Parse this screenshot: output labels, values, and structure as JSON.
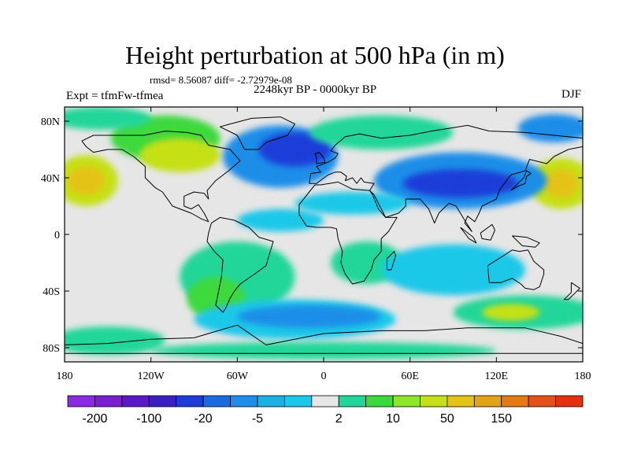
{
  "title": "Height perturbation at 500 hPa (in m)",
  "stats": "rmsd= 8.56087 diff= -2.72979e-08",
  "period": "2248kyr BP - 0000kyr BP",
  "experiment": "Expt = tfmFw-tfmea",
  "season": "DJF",
  "map": {
    "projection": "cylindrical equidistant",
    "lon_range": [
      -180,
      180
    ],
    "lat_range": [
      -90,
      90
    ],
    "lon_ticks": [
      {
        "value": -180,
        "label": "180"
      },
      {
        "value": -120,
        "label": "120W"
      },
      {
        "value": -60,
        "label": "60W"
      },
      {
        "value": 0,
        "label": "0"
      },
      {
        "value": 60,
        "label": "60E"
      },
      {
        "value": 120,
        "label": "120E"
      },
      {
        "value": 180,
        "label": "180"
      }
    ],
    "lat_ticks": [
      {
        "value": 80,
        "label": "80N"
      },
      {
        "value": 40,
        "label": "40N"
      },
      {
        "value": 0,
        "label": "0"
      },
      {
        "value": -40,
        "label": "40S"
      },
      {
        "value": -80,
        "label": "80S"
      }
    ],
    "background_color": "#e6e6e6",
    "coastline_color": "#000000",
    "anomaly_regions": [
      {
        "lon": -165,
        "lat": 38,
        "rlon": 22,
        "rlat": 18,
        "level": 40
      },
      {
        "lon": -165,
        "lat": 38,
        "rlon": 13,
        "rlat": 10,
        "level": 50
      },
      {
        "lon": 165,
        "lat": 36,
        "rlon": 22,
        "rlat": 18,
        "level": 40
      },
      {
        "lon": 165,
        "lat": 36,
        "rlon": 12,
        "rlat": 10,
        "level": 50
      },
      {
        "lon": -110,
        "lat": 68,
        "rlon": 38,
        "rlat": 16,
        "level": 20
      },
      {
        "lon": -100,
        "lat": 56,
        "rlon": 28,
        "rlat": 12,
        "level": 40
      },
      {
        "lon": -155,
        "lat": 82,
        "rlon": 35,
        "rlat": 8,
        "level": 10
      },
      {
        "lon": -30,
        "lat": 55,
        "rlon": 40,
        "rlat": 22,
        "level": -20
      },
      {
        "lon": -20,
        "lat": 60,
        "rlon": 25,
        "rlat": 12,
        "level": -50
      },
      {
        "lon": 95,
        "lat": 38,
        "rlon": 60,
        "rlat": 20,
        "level": -20
      },
      {
        "lon": 95,
        "lat": 36,
        "rlon": 40,
        "rlat": 10,
        "level": -50
      },
      {
        "lon": 40,
        "lat": 72,
        "rlon": 50,
        "rlat": 12,
        "level": 10
      },
      {
        "lon": 20,
        "lat": 22,
        "rlon": 40,
        "rlat": 8,
        "level": -5
      },
      {
        "lon": -30,
        "lat": 10,
        "rlon": 30,
        "rlat": 8,
        "level": -5
      },
      {
        "lon": -60,
        "lat": -30,
        "rlon": 40,
        "rlat": 25,
        "level": 10
      },
      {
        "lon": -75,
        "lat": -45,
        "rlon": 20,
        "rlat": 15,
        "level": 20
      },
      {
        "lon": 30,
        "lat": -20,
        "rlon": 25,
        "rlat": 15,
        "level": 10
      },
      {
        "lon": -20,
        "lat": -60,
        "rlon": 70,
        "rlat": 14,
        "level": -5
      },
      {
        "lon": -10,
        "lat": -58,
        "rlon": 50,
        "rlat": 8,
        "level": -20
      },
      {
        "lon": 90,
        "lat": -25,
        "rlon": 50,
        "rlat": 18,
        "level": -5
      },
      {
        "lon": 140,
        "lat": -55,
        "rlon": 50,
        "rlat": 12,
        "level": 10
      },
      {
        "lon": 130,
        "lat": -55,
        "rlon": 20,
        "rlat": 6,
        "level": 40
      },
      {
        "lon": -150,
        "lat": -75,
        "rlon": 40,
        "rlat": 10,
        "level": 10
      },
      {
        "lon": 0,
        "lat": -82,
        "rlon": 120,
        "rlat": 6,
        "level": 10
      },
      {
        "lon": 160,
        "lat": 75,
        "rlon": 25,
        "rlat": 10,
        "level": -20
      }
    ],
    "coastlines": [
      {
        "name": "north-america",
        "points": [
          [
            -168,
            66
          ],
          [
            -160,
            70
          ],
          [
            -140,
            70
          ],
          [
            -125,
            70
          ],
          [
            -110,
            73
          ],
          [
            -95,
            72
          ],
          [
            -85,
            70
          ],
          [
            -80,
            63
          ],
          [
            -65,
            60
          ],
          [
            -58,
            52
          ],
          [
            -66,
            45
          ],
          [
            -75,
            38
          ],
          [
            -81,
            31
          ],
          [
            -80,
            25
          ],
          [
            -83,
            29
          ],
          [
            -90,
            30
          ],
          [
            -97,
            27
          ],
          [
            -97,
            20
          ],
          [
            -92,
            18
          ],
          [
            -87,
            21
          ],
          [
            -83,
            15
          ],
          [
            -80,
            9
          ],
          [
            -85,
            11
          ],
          [
            -92,
            15
          ],
          [
            -105,
            20
          ],
          [
            -112,
            30
          ],
          [
            -117,
            33
          ],
          [
            -124,
            40
          ],
          [
            -124,
            48
          ],
          [
            -132,
            55
          ],
          [
            -140,
            60
          ],
          [
            -150,
            60
          ],
          [
            -160,
            58
          ],
          [
            -165,
            62
          ],
          [
            -168,
            66
          ]
        ]
      },
      {
        "name": "greenland",
        "points": [
          [
            -55,
            60
          ],
          [
            -45,
            60
          ],
          [
            -40,
            65
          ],
          [
            -25,
            70
          ],
          [
            -20,
            78
          ],
          [
            -30,
            83
          ],
          [
            -50,
            82
          ],
          [
            -65,
            78
          ],
          [
            -72,
            76
          ],
          [
            -60,
            70
          ],
          [
            -55,
            60
          ]
        ]
      },
      {
        "name": "south-america",
        "points": [
          [
            -78,
            8
          ],
          [
            -72,
            12
          ],
          [
            -62,
            10
          ],
          [
            -52,
            5
          ],
          [
            -45,
            -2
          ],
          [
            -35,
            -5
          ],
          [
            -38,
            -15
          ],
          [
            -40,
            -22
          ],
          [
            -48,
            -28
          ],
          [
            -58,
            -35
          ],
          [
            -62,
            -40
          ],
          [
            -65,
            -45
          ],
          [
            -68,
            -52
          ],
          [
            -70,
            -55
          ],
          [
            -75,
            -50
          ],
          [
            -73,
            -40
          ],
          [
            -71,
            -30
          ],
          [
            -70,
            -18
          ],
          [
            -76,
            -12
          ],
          [
            -81,
            -5
          ],
          [
            -80,
            1
          ],
          [
            -78,
            8
          ]
        ]
      },
      {
        "name": "eurasia",
        "points": [
          [
            -10,
            36
          ],
          [
            -9,
            43
          ],
          [
            -2,
            44
          ],
          [
            -5,
            48
          ],
          [
            3,
            51
          ],
          [
            8,
            54
          ],
          [
            10,
            57
          ],
          [
            5,
            59
          ],
          [
            8,
            63
          ],
          [
            15,
            69
          ],
          [
            25,
            71
          ],
          [
            40,
            68
          ],
          [
            60,
            70
          ],
          [
            75,
            73
          ],
          [
            100,
            77
          ],
          [
            115,
            73
          ],
          [
            140,
            72
          ],
          [
            160,
            70
          ],
          [
            180,
            68
          ],
          [
            180,
            62
          ],
          [
            170,
            60
          ],
          [
            160,
            55
          ],
          [
            155,
            50
          ],
          [
            143,
            53
          ],
          [
            140,
            45
          ],
          [
            130,
            42
          ],
          [
            127,
            38
          ],
          [
            122,
            31
          ],
          [
            120,
            25
          ],
          [
            110,
            20
          ],
          [
            108,
            15
          ],
          [
            105,
            9
          ],
          [
            100,
            13
          ],
          [
            98,
            8
          ],
          [
            103,
            2
          ],
          [
            98,
            10
          ],
          [
            92,
            20
          ],
          [
            87,
            22
          ],
          [
            80,
            15
          ],
          [
            77,
            8
          ],
          [
            73,
            18
          ],
          [
            67,
            25
          ],
          [
            57,
            25
          ],
          [
            57,
            20
          ],
          [
            52,
            15
          ],
          [
            43,
            12
          ],
          [
            35,
            28
          ],
          [
            32,
            31
          ],
          [
            35,
            36
          ],
          [
            28,
            37
          ],
          [
            26,
            40
          ],
          [
            23,
            36
          ],
          [
            20,
            40
          ],
          [
            15,
            38
          ],
          [
            16,
            41
          ],
          [
            12,
            44
          ],
          [
            8,
            44
          ],
          [
            3,
            42
          ],
          [
            -5,
            36
          ],
          [
            -10,
            36
          ]
        ]
      },
      {
        "name": "africa",
        "points": [
          [
            -17,
            21
          ],
          [
            -17,
            14
          ],
          [
            -12,
            6
          ],
          [
            -5,
            5
          ],
          [
            5,
            5
          ],
          [
            9,
            4
          ],
          [
            10,
            -3
          ],
          [
            13,
            -12
          ],
          [
            12,
            -20
          ],
          [
            15,
            -28
          ],
          [
            20,
            -35
          ],
          [
            28,
            -33
          ],
          [
            33,
            -25
          ],
          [
            35,
            -18
          ],
          [
            40,
            -12
          ],
          [
            40,
            -3
          ],
          [
            45,
            2
          ],
          [
            51,
            12
          ],
          [
            43,
            12
          ],
          [
            38,
            18
          ],
          [
            34,
            28
          ],
          [
            32,
            31
          ],
          [
            20,
            32
          ],
          [
            10,
            37
          ],
          [
            -2,
            35
          ],
          [
            -6,
            35
          ],
          [
            -10,
            30
          ],
          [
            -17,
            21
          ]
        ]
      },
      {
        "name": "australia",
        "points": [
          [
            114,
            -22
          ],
          [
            115,
            -34
          ],
          [
            123,
            -34
          ],
          [
            131,
            -31
          ],
          [
            137,
            -35
          ],
          [
            140,
            -38
          ],
          [
            146,
            -39
          ],
          [
            150,
            -37
          ],
          [
            153,
            -28
          ],
          [
            153,
            -25
          ],
          [
            146,
            -19
          ],
          [
            142,
            -11
          ],
          [
            136,
            -12
          ],
          [
            131,
            -11
          ],
          [
            125,
            -15
          ],
          [
            114,
            -22
          ]
        ]
      },
      {
        "name": "antarctica",
        "points": [
          [
            -180,
            -78
          ],
          [
            -150,
            -77
          ],
          [
            -120,
            -74
          ],
          [
            -90,
            -73
          ],
          [
            -60,
            -64
          ],
          [
            -40,
            -78
          ],
          [
            0,
            -70
          ],
          [
            40,
            -68
          ],
          [
            70,
            -68
          ],
          [
            100,
            -66
          ],
          [
            140,
            -66
          ],
          [
            165,
            -72
          ],
          [
            180,
            -77
          ]
        ]
      },
      {
        "name": "greenland-ice",
        "points": [
          [
            -180,
            -84
          ],
          [
            180,
            -84
          ]
        ]
      },
      {
        "name": "uk",
        "points": [
          [
            -5,
            50
          ],
          [
            1,
            51
          ],
          [
            0,
            54
          ],
          [
            -3,
            58
          ],
          [
            -6,
            57
          ],
          [
            -5,
            54
          ],
          [
            -5,
            50
          ]
        ]
      },
      {
        "name": "japan",
        "points": [
          [
            130,
            31
          ],
          [
            135,
            34
          ],
          [
            140,
            36
          ],
          [
            141,
            41
          ],
          [
            144,
            43
          ],
          [
            141,
            45
          ],
          [
            139,
            40
          ],
          [
            133,
            34
          ],
          [
            130,
            31
          ]
        ]
      },
      {
        "name": "madagascar",
        "points": [
          [
            44,
            -25
          ],
          [
            47,
            -25
          ],
          [
            50,
            -15
          ],
          [
            49,
            -12
          ],
          [
            44,
            -17
          ],
          [
            44,
            -25
          ]
        ]
      },
      {
        "name": "new-zealand",
        "points": [
          [
            172,
            -34
          ],
          [
            178,
            -38
          ],
          [
            175,
            -41
          ],
          [
            170,
            -46
          ],
          [
            167,
            -46
          ],
          [
            172,
            -41
          ],
          [
            172,
            -34
          ]
        ]
      },
      {
        "name": "borneo",
        "points": [
          [
            109,
            1
          ],
          [
            117,
            7
          ],
          [
            119,
            3
          ],
          [
            116,
            -4
          ],
          [
            110,
            -3
          ],
          [
            109,
            1
          ]
        ]
      },
      {
        "name": "sumatra",
        "points": [
          [
            95,
            5
          ],
          [
            104,
            -2
          ],
          [
            106,
            -6
          ],
          [
            101,
            -3
          ],
          [
            95,
            5
          ]
        ]
      },
      {
        "name": "new-guinea",
        "points": [
          [
            131,
            -1
          ],
          [
            141,
            -2
          ],
          [
            150,
            -6
          ],
          [
            147,
            -9
          ],
          [
            138,
            -8
          ],
          [
            131,
            -1
          ]
        ]
      }
    ]
  },
  "colorbar": {
    "colors": [
      "#8a2be2",
      "#7a1fd0",
      "#5a19c8",
      "#3a20c0",
      "#1e3cd8",
      "#1a6ae0",
      "#1f8ee8",
      "#1bb1e6",
      "#1cc8e8",
      "#e6e6e6",
      "#21d69a",
      "#3cd93c",
      "#8ee628",
      "#c6e017",
      "#e4c317",
      "#e4a317",
      "#e47a17",
      "#e45017",
      "#e42f10"
    ],
    "tick_labels": [
      {
        "index": 1,
        "label": "-200"
      },
      {
        "index": 3,
        "label": "-100"
      },
      {
        "index": 5,
        "label": "-20"
      },
      {
        "index": 7,
        "label": "-5"
      },
      {
        "index": 10,
        "label": "2"
      },
      {
        "index": 12,
        "label": "10"
      },
      {
        "index": 14,
        "label": "50"
      },
      {
        "index": 16,
        "label": "150"
      }
    ],
    "level_colors": {
      "-50": "#1e3cd8",
      "-20": "#1f8ee8",
      "-5": "#1cc8e8",
      "10": "#21d69a",
      "20": "#3cd93c",
      "40": "#c6e017",
      "50": "#e4c317"
    }
  }
}
